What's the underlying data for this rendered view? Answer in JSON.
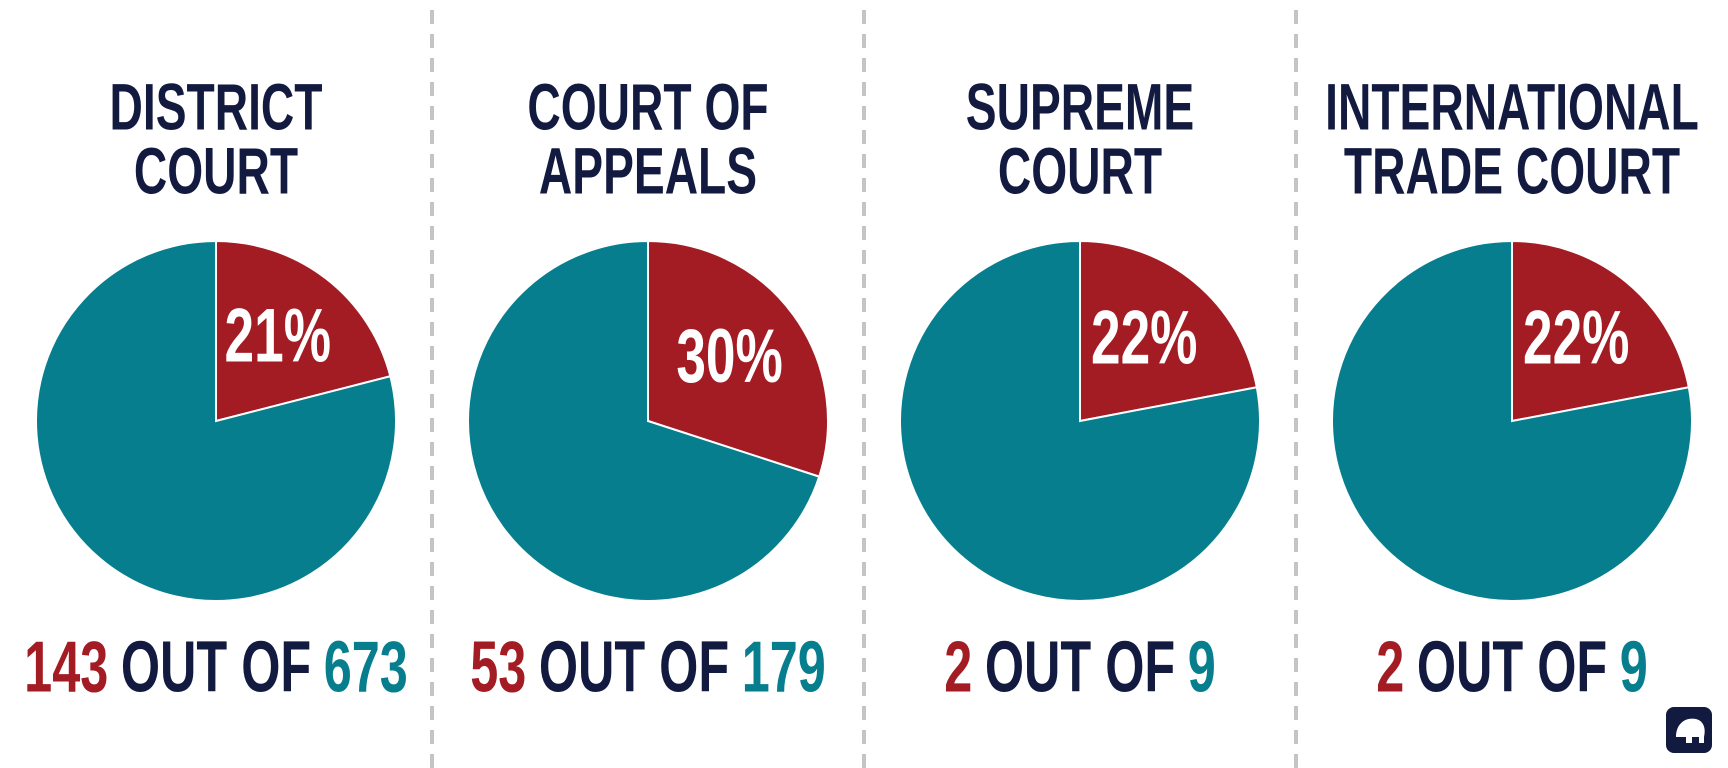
{
  "chart_data": [
    {
      "type": "pie",
      "title": [
        "DISTRICT",
        "COURT"
      ],
      "values": [
        21,
        79
      ],
      "value_labels": [
        "21%",
        null
      ],
      "colors": [
        "#a31c24",
        "#077e8e"
      ],
      "count": 143,
      "connector": "OUT OF",
      "total": 673
    },
    {
      "type": "pie",
      "title": [
        "COURT OF",
        "APPEALS"
      ],
      "values": [
        30,
        70
      ],
      "value_labels": [
        "30%",
        null
      ],
      "colors": [
        "#a31c24",
        "#077e8e"
      ],
      "count": 53,
      "connector": "OUT OF",
      "total": 179
    },
    {
      "type": "pie",
      "title": [
        "SUPREME",
        "COURT"
      ],
      "values": [
        22,
        78
      ],
      "value_labels": [
        "22%",
        null
      ],
      "colors": [
        "#a31c24",
        "#077e8e"
      ],
      "count": 2,
      "connector": "OUT OF",
      "total": 9
    },
    {
      "type": "pie",
      "title": [
        "INTERNATIONAL",
        "TRADE COURT"
      ],
      "values": [
        22,
        78
      ],
      "value_labels": [
        "22%",
        null
      ],
      "colors": [
        "#a31c24",
        "#077e8e"
      ],
      "count": 2,
      "connector": "OUT OF",
      "total": 9
    }
  ]
}
